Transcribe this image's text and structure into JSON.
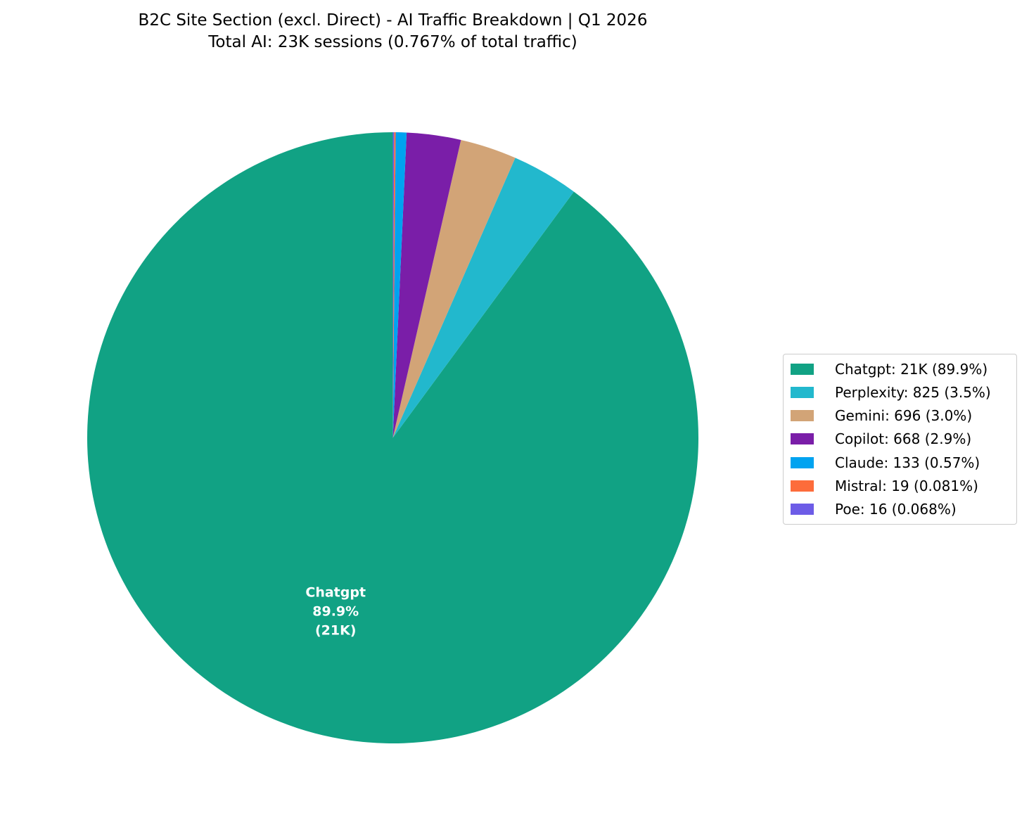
{
  "chart_data": {
    "type": "pie",
    "title": "B2C Site Section (excl. Direct) - AI Traffic Breakdown | Q1 2026",
    "subtitle": "Total AI: 23K sessions (0.767% of total traffic)",
    "startangle": 90,
    "counterclock": true,
    "legend_position": "center right",
    "total_sessions_label": "23K",
    "total_share_label": "0.767%",
    "slices": [
      {
        "label": "Chatgpt",
        "value": 21000,
        "display_value": "21K",
        "pct_label": "89.9%",
        "color": "#11A284",
        "legend_label": "Chatgpt: 21K (89.9%)"
      },
      {
        "label": "Perplexity",
        "value": 825,
        "display_value": "825",
        "pct_label": "3.5%",
        "color": "#22B8CD",
        "legend_label": "Perplexity: 825 (3.5%)"
      },
      {
        "label": "Gemini",
        "value": 696,
        "display_value": "696",
        "pct_label": "3.0%",
        "color": "#D2A477",
        "legend_label": "Gemini: 696 (3.0%)"
      },
      {
        "label": "Copilot",
        "value": 668,
        "display_value": "668",
        "pct_label": "2.9%",
        "color": "#7A1EA8",
        "legend_label": "Copilot: 668 (2.9%)"
      },
      {
        "label": "Claude",
        "value": 133,
        "display_value": "133",
        "pct_label": "0.57%",
        "color": "#00A3F0",
        "legend_label": "Claude: 133 (0.57%)"
      },
      {
        "label": "Mistral",
        "value": 19,
        "display_value": "19",
        "pct_label": "0.081%",
        "color": "#FD6C3B",
        "legend_label": "Mistral: 19 (0.081%)"
      },
      {
        "label": "Poe",
        "value": 16,
        "display_value": "16",
        "pct_label": "0.068%",
        "color": "#6D5CE7",
        "legend_label": "Poe: 16 (0.068%)"
      }
    ],
    "center_label": {
      "lines": [
        "Chatgpt",
        "89.9%",
        "(21K)"
      ],
      "color": "#ffffff"
    }
  }
}
